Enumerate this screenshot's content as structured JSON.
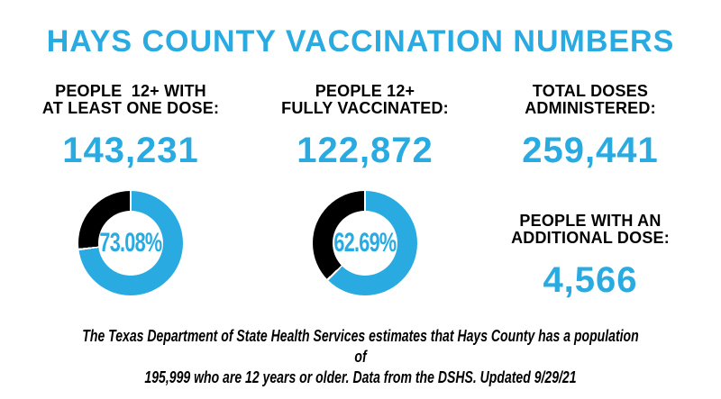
{
  "title": "HAYS COUNTY VACCINATION NUMBERS",
  "colors": {
    "accent": "#29ABE2",
    "ink": "#000000",
    "background": "#FFFFFF"
  },
  "stats": [
    {
      "label": "PEOPLE  12+ WITH\nAT LEAST ONE DOSE:",
      "value": "143,231"
    },
    {
      "label": "PEOPLE 12+\nFULLY VACCINATED:",
      "value": "122,872"
    },
    {
      "label": "TOTAL DOSES\nADMINISTERED:",
      "value": "259,441"
    },
    {
      "label": "PEOPLE WITH AN\nADDITIONAL DOSE:",
      "value": "4,566"
    }
  ],
  "chart_data": [
    {
      "type": "pie",
      "subtype": "donut",
      "title": "People 12+ with at least one dose",
      "center_label": "73.08%",
      "start_angle_deg": 0,
      "direction": "clockwise",
      "legend": "none",
      "segments": [
        {
          "name": "with-at-least-one-dose",
          "value": 73.08,
          "color": "#29ABE2"
        },
        {
          "name": "remainder",
          "value": 26.92,
          "color": "#000000"
        }
      ]
    },
    {
      "type": "pie",
      "subtype": "donut",
      "title": "People 12+ fully vaccinated",
      "center_label": "62.69%",
      "start_angle_deg": 0,
      "direction": "clockwise",
      "legend": "none",
      "segments": [
        {
          "name": "fully-vaccinated",
          "value": 62.69,
          "color": "#29ABE2"
        },
        {
          "name": "remainder",
          "value": 37.31,
          "color": "#000000"
        }
      ]
    }
  ],
  "footer": {
    "line1": "The Texas Department of State Health Services estimates that Hays County has a population of",
    "line2": "195,999 who are 12 years or older. Data from the DSHS. Updated 9/29/21"
  }
}
